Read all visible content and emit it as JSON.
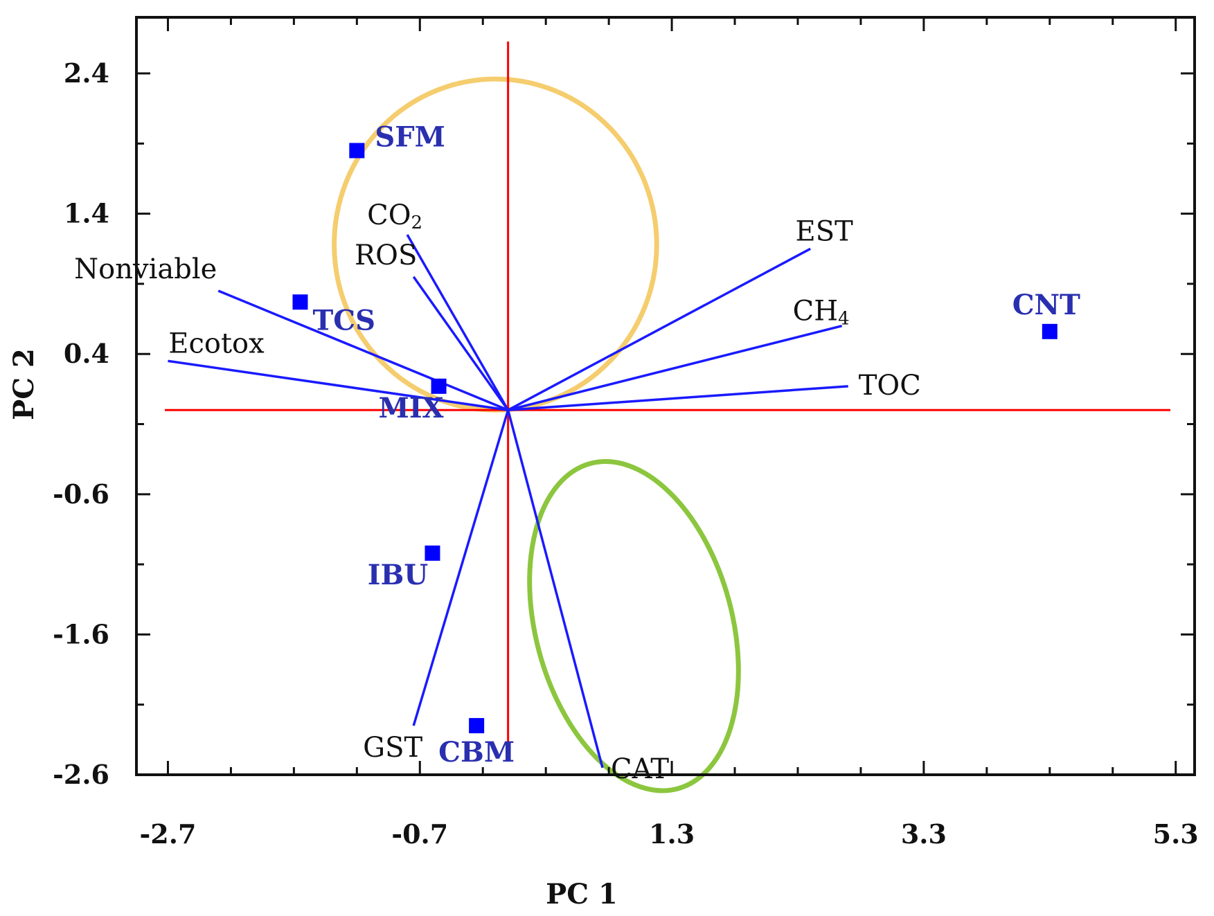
{
  "chart_data": {
    "type": "scatter",
    "title": "",
    "xlabel": "PC 1",
    "ylabel": "PC 2",
    "xlim": [
      -2.95,
      5.45
    ],
    "ylim": [
      -2.6,
      2.8
    ],
    "x_ticks": [
      "-2.7",
      "-0.7",
      "1.3",
      "3.3",
      "5.3"
    ],
    "y_ticks": [
      "2.4",
      "1.4",
      "0.4",
      "-0.6",
      "-1.6",
      "-2.6"
    ],
    "origin": [
      0,
      0
    ],
    "colors": {
      "axis_lines": "#ff0000",
      "loadings": "#1a1aff",
      "observations": "#0000ff",
      "observation_labels": "#2a2fb0",
      "ellipse_upper": "#f5cd6e",
      "ellipse_lower": "#8cc63e"
    },
    "loadings": [
      {
        "name": "CO",
        "subscript": "2",
        "x": -0.8,
        "y": 1.25
      },
      {
        "name": "ROS",
        "x": -0.75,
        "y": 0.95
      },
      {
        "name": "Nonviable",
        "x": -2.3,
        "y": 0.85
      },
      {
        "name": "Ecotox",
        "x": -2.7,
        "y": 0.35
      },
      {
        "name": "EST",
        "x": 2.4,
        "y": 1.15
      },
      {
        "name": "CH",
        "subscript": "4",
        "x": 2.65,
        "y": 0.6
      },
      {
        "name": "TOC",
        "x": 2.7,
        "y": 0.17
      },
      {
        "name": "GST",
        "x": -0.75,
        "y": -2.25
      },
      {
        "name": "CAT",
        "x": 0.75,
        "y": -2.55
      }
    ],
    "observations": [
      {
        "name": "SFM",
        "x": -1.2,
        "y": 1.85
      },
      {
        "name": "TCS",
        "x": -1.65,
        "y": 0.77
      },
      {
        "name": "MIX",
        "x": -0.55,
        "y": 0.17
      },
      {
        "name": "CNT",
        "x": 4.3,
        "y": 0.56
      },
      {
        "name": "IBU",
        "x": -0.6,
        "y": -1.02
      },
      {
        "name": "CBM",
        "x": -0.25,
        "y": -2.25
      }
    ],
    "ellipses": [
      {
        "name": "upper-cluster",
        "cx": -0.1,
        "cy": 1.18,
        "rx": 1.28,
        "ry": 1.18,
        "angle": 0,
        "color": "#f5cd6e"
      },
      {
        "name": "lower-cluster",
        "cx": 1.0,
        "cy": -1.54,
        "rx": 0.78,
        "ry": 1.2,
        "angle": -15,
        "color": "#8cc63e"
      }
    ]
  }
}
